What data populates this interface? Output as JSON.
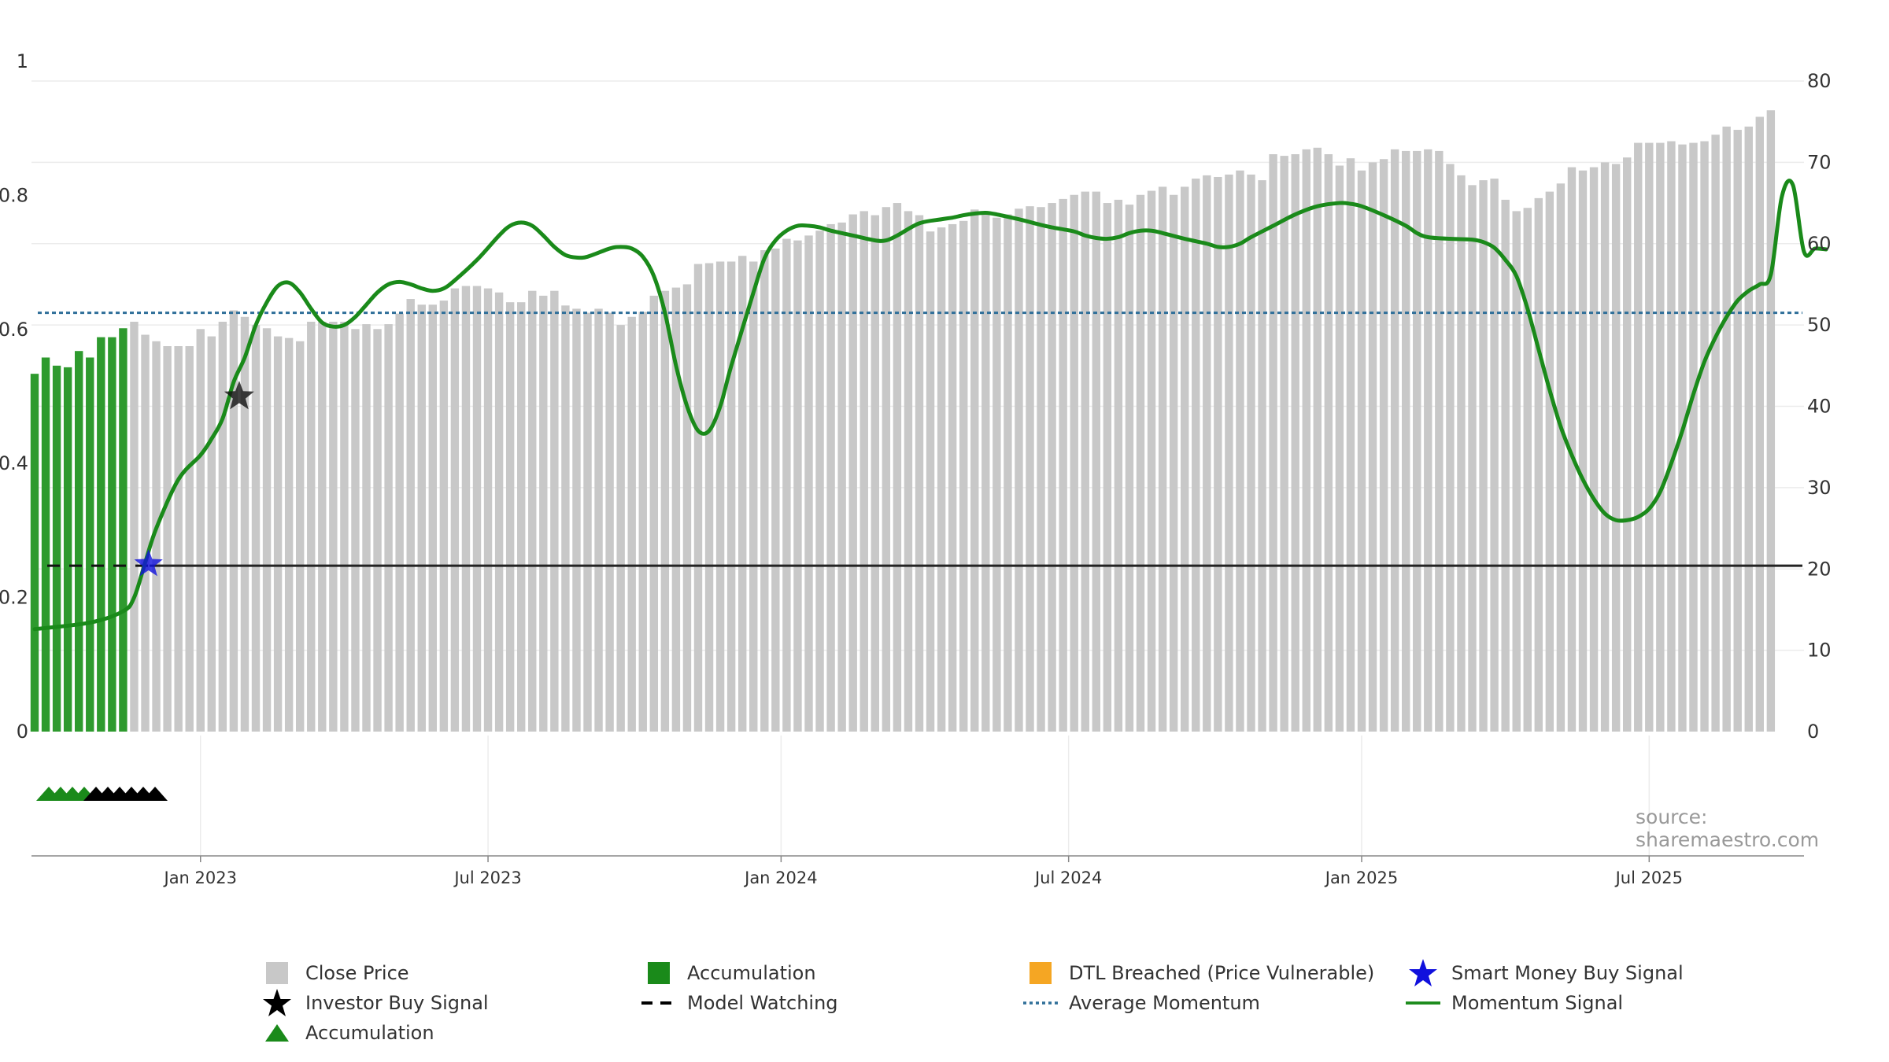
{
  "chart_data": {
    "type": "bar",
    "title": "",
    "xlabel": "",
    "ylabel": "",
    "left_axis": {
      "min": 0,
      "max": 1,
      "ticks": [
        "0",
        "0.2",
        "0.4",
        "0.6",
        "0.8",
        "1"
      ],
      "tick_values": [
        0,
        0.2,
        0.4,
        0.6,
        0.8,
        1
      ]
    },
    "right_axis": {
      "min": 0,
      "max": 80,
      "ticks": [
        "0",
        "10",
        "20",
        "30",
        "40",
        "50",
        "60",
        "70",
        "80"
      ],
      "tick_values": [
        0,
        10,
        20,
        30,
        40,
        50,
        60,
        70,
        80
      ]
    },
    "x_ticks": [
      {
        "label": "Jan 2023",
        "week": 15
      },
      {
        "label": "Jul 2023",
        "week": 41
      },
      {
        "label": "Jan 2024",
        "week": 67.5
      },
      {
        "label": "Jul 2024",
        "week": 93.5
      },
      {
        "label": "Jan 2025",
        "week": 120
      },
      {
        "label": "Jul 2025",
        "week": 146
      }
    ],
    "price_series": {
      "name": "Close Price",
      "accumulation_bars": 9,
      "values": [
        44,
        46,
        45,
        44.8,
        46.8,
        46,
        48.5,
        48.5,
        49.6,
        50.4,
        48.8,
        48,
        47.4,
        47.4,
        47.4,
        49.5,
        48.6,
        50.4,
        51.8,
        51,
        50,
        49.6,
        48.6,
        48.4,
        48,
        50.4,
        50.4,
        50.4,
        50.4,
        49.5,
        50.1,
        49.5,
        50.1,
        51.4,
        53.2,
        52.5,
        52.5,
        53,
        54.5,
        54.8,
        54.8,
        54.5,
        54,
        52.8,
        52.8,
        54.2,
        53.6,
        54.2,
        52.4,
        52,
        51.5,
        52,
        51.5,
        50,
        51,
        51.6,
        53.6,
        54.2,
        54.6,
        55,
        57.5,
        57.6,
        57.8,
        57.8,
        58.5,
        57.8,
        59.2,
        59.4,
        60.6,
        60.4,
        61,
        61.6,
        62.4,
        62.6,
        63.6,
        64,
        63.5,
        64.5,
        65,
        64,
        63.5,
        61.5,
        62,
        62.4,
        62.8,
        64.2,
        63.6,
        63.2,
        63.6,
        64.3,
        64.6,
        64.5,
        65,
        65.5,
        66,
        66.4,
        66.4,
        65,
        65.4,
        64.8,
        66,
        66.5,
        67,
        66,
        67,
        68,
        68.4,
        68.2,
        68.5,
        69,
        68.5,
        67.8,
        71,
        70.8,
        71,
        71.6,
        71.8,
        71,
        69.6,
        70.5,
        69,
        70,
        70.4,
        71.6,
        71.4,
        71.4,
        71.6,
        71.4,
        69.8,
        68.4,
        67.2,
        67.8,
        68,
        65.4,
        64,
        64.4,
        65.6,
        66.4,
        67.4,
        69.4,
        69,
        69.4,
        70,
        69.8,
        70.6,
        72.4,
        72.4,
        72.4,
        72.6,
        72.2,
        72.4,
        72.6,
        73.4,
        74.4,
        74,
        74.4,
        75.6,
        76.4
      ]
    },
    "momentum_series": {
      "name": "Momentum Signal",
      "points": [
        [
          0,
          12.6
        ],
        [
          5,
          13.4
        ],
        [
          8,
          14.8
        ],
        [
          9,
          16.5
        ],
        [
          10,
          20.8
        ],
        [
          11,
          25
        ],
        [
          13,
          31
        ],
        [
          15,
          34
        ],
        [
          16,
          36
        ],
        [
          17,
          38.5
        ],
        [
          18,
          43
        ],
        [
          19,
          46
        ],
        [
          20,
          50
        ],
        [
          21,
          52.8
        ],
        [
          22,
          54.8
        ],
        [
          23,
          55.2
        ],
        [
          24,
          54
        ],
        [
          25,
          52
        ],
        [
          26,
          50.3
        ],
        [
          27,
          49.8
        ],
        [
          28,
          50
        ],
        [
          29,
          51
        ],
        [
          30,
          52.5
        ],
        [
          31,
          54
        ],
        [
          32,
          55
        ],
        [
          33,
          55.3
        ],
        [
          34,
          55
        ],
        [
          35,
          54.5
        ],
        [
          36,
          54.2
        ],
        [
          37,
          54.5
        ],
        [
          38,
          55.5
        ],
        [
          40,
          58
        ],
        [
          42,
          61
        ],
        [
          43,
          62.2
        ],
        [
          44,
          62.6
        ],
        [
          45,
          62.2
        ],
        [
          46,
          61
        ],
        [
          47,
          59.6
        ],
        [
          48,
          58.6
        ],
        [
          49,
          58.3
        ],
        [
          50,
          58.4
        ],
        [
          52,
          59.4
        ],
        [
          53,
          59.6
        ],
        [
          54,
          59.4
        ],
        [
          55,
          58.4
        ],
        [
          56,
          56
        ],
        [
          57,
          51.5
        ],
        [
          58,
          45
        ],
        [
          59,
          40
        ],
        [
          60,
          37
        ],
        [
          61,
          37
        ],
        [
          62,
          40
        ],
        [
          63,
          45
        ],
        [
          65,
          54
        ],
        [
          66,
          58.2
        ],
        [
          67,
          60.4
        ],
        [
          68,
          61.6
        ],
        [
          69,
          62.2
        ],
        [
          70,
          62.2
        ],
        [
          71,
          62
        ],
        [
          72,
          61.6
        ],
        [
          74,
          61
        ],
        [
          76,
          60.4
        ],
        [
          77,
          60.4
        ],
        [
          78,
          61
        ],
        [
          80,
          62.5
        ],
        [
          82,
          63
        ],
        [
          83,
          63.2
        ],
        [
          84,
          63.5
        ],
        [
          85,
          63.7
        ],
        [
          86,
          63.8
        ],
        [
          87,
          63.6
        ],
        [
          89,
          63
        ],
        [
          91,
          62.3
        ],
        [
          92,
          62
        ],
        [
          94,
          61.5
        ],
        [
          95,
          61
        ],
        [
          96,
          60.7
        ],
        [
          97,
          60.6
        ],
        [
          98,
          60.8
        ],
        [
          99,
          61.3
        ],
        [
          100,
          61.6
        ],
        [
          101,
          61.6
        ],
        [
          102,
          61.3
        ],
        [
          104,
          60.6
        ],
        [
          106,
          60
        ],
        [
          107,
          59.6
        ],
        [
          108,
          59.6
        ],
        [
          109,
          60
        ],
        [
          110,
          60.8
        ],
        [
          112,
          62.2
        ],
        [
          114,
          63.6
        ],
        [
          116,
          64.6
        ],
        [
          118,
          65
        ],
        [
          119,
          64.9
        ],
        [
          120,
          64.6
        ],
        [
          122,
          63.5
        ],
        [
          124,
          62.2
        ],
        [
          125,
          61.3
        ],
        [
          126,
          60.8
        ],
        [
          128,
          60.6
        ],
        [
          130,
          60.5
        ],
        [
          131,
          60.2
        ],
        [
          132,
          59.5
        ],
        [
          133,
          58
        ],
        [
          134,
          56
        ],
        [
          135,
          52
        ],
        [
          136,
          47
        ],
        [
          137,
          42
        ],
        [
          138,
          37.5
        ],
        [
          139,
          34
        ],
        [
          140,
          31
        ],
        [
          141,
          28.6
        ],
        [
          142,
          26.8
        ],
        [
          143,
          26
        ],
        [
          144,
          26
        ],
        [
          145,
          26.4
        ],
        [
          146,
          27.4
        ],
        [
          147,
          29.5
        ],
        [
          148,
          33
        ],
        [
          149,
          37
        ],
        [
          150,
          41.5
        ],
        [
          151,
          45.5
        ],
        [
          152,
          48.5
        ],
        [
          153,
          51
        ],
        [
          154,
          53
        ],
        [
          155,
          54.2
        ],
        [
          156,
          55
        ],
        [
          157,
          56.2
        ],
        [
          158,
          65.8
        ],
        [
          159,
          67.2
        ],
        [
          160,
          59
        ],
        [
          161,
          59.4
        ],
        [
          162,
          59.3
        ]
      ]
    },
    "average_momentum": 51.5,
    "model_watching_level": 20.4,
    "investor_buy_signal": {
      "week": 18.5,
      "value": 0.5
    },
    "smart_money_buy_signal": {
      "week": 10.3,
      "value": 0.25
    },
    "accumulation_markers": {
      "green": 4,
      "black": 6
    },
    "source_text": "source: sharemaestro.com"
  },
  "legend": {
    "close_price": "Close Price",
    "accumulation_bar": "Accumulation",
    "dtl_breached": "DTL Breached (Price Vulnerable)",
    "smart_money": "Smart Money Buy Signal",
    "investor_buy": "Investor Buy Signal",
    "model_watching": "Model Watching",
    "average_momentum": "Average Momentum",
    "momentum_signal": "Momentum Signal",
    "accumulation_marker": "Accumulation"
  },
  "colors": {
    "price_bar": "#c8c8c8",
    "accumulation": "#2e9a2e",
    "momentum": "#1a8a1a",
    "average_momentum": "#2f6f99",
    "dtl": "#f5a623",
    "smart_money": "#1010dd",
    "investor": "#000000"
  }
}
